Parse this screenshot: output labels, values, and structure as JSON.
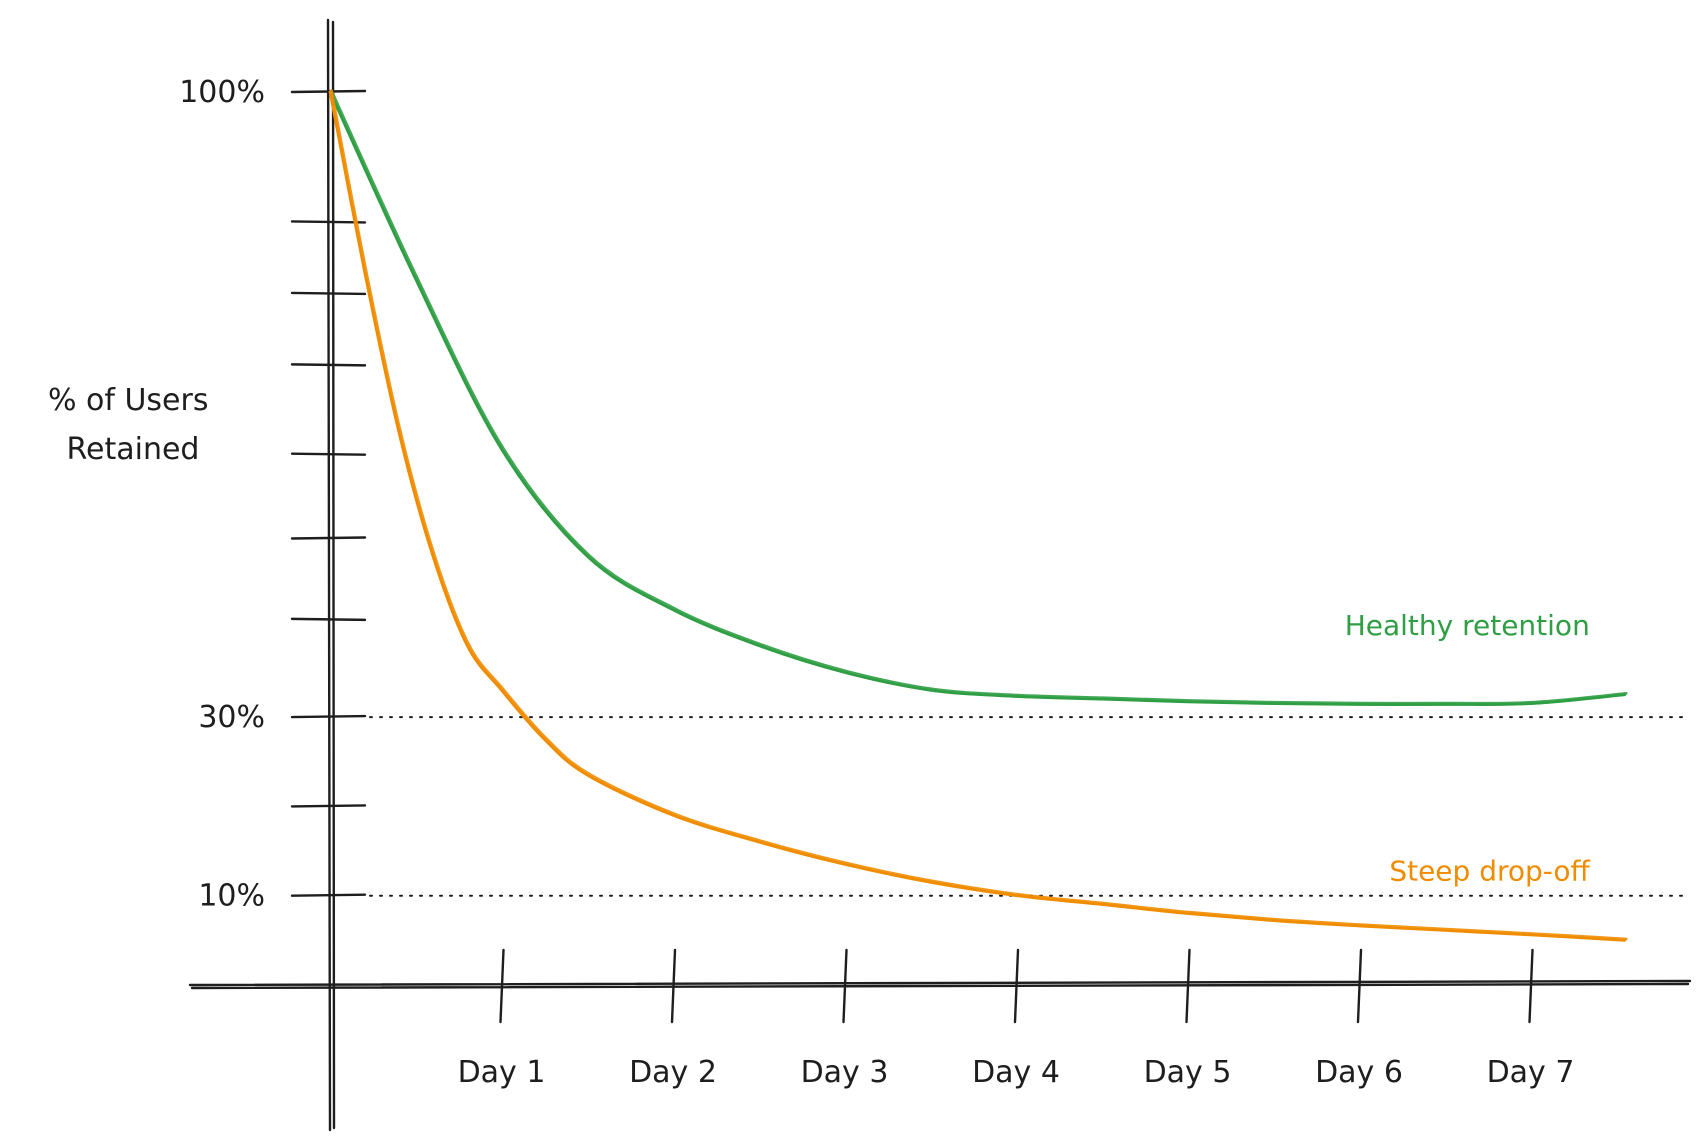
{
  "chart_data": {
    "type": "line",
    "title": "",
    "xlabel": "",
    "ylabel": "% of Users Retained",
    "ylabel_lines": [
      "% of Users",
      "Retained"
    ],
    "x_range": [
      0,
      7.65
    ],
    "ylim": [
      0,
      100
    ],
    "y_tick_values": [
      100,
      85.5,
      77.5,
      69.5,
      59.5,
      50,
      41,
      30,
      20,
      10
    ],
    "y_tick_labels": [
      {
        "value": 100,
        "label": "100%"
      },
      {
        "value": 30,
        "label": "30%"
      },
      {
        "value": 10,
        "label": "10%"
      }
    ],
    "reference_lines": [
      30,
      10
    ],
    "x_ticks": [
      {
        "value": 1,
        "label": "Day 1"
      },
      {
        "value": 2,
        "label": "Day 2"
      },
      {
        "value": 3,
        "label": "Day 3"
      },
      {
        "value": 4,
        "label": "Day 4"
      },
      {
        "value": 5,
        "label": "Day 5"
      },
      {
        "value": 6,
        "label": "Day 6"
      },
      {
        "value": 7,
        "label": "Day 7"
      }
    ],
    "grid": false,
    "legend": "inline labels at right end of each series",
    "series": [
      {
        "name": "Healthy retention",
        "color": "#2f9e44",
        "x": [
          0,
          0.5,
          1,
          1.5,
          2,
          2.5,
          3,
          3.5,
          4,
          4.5,
          5,
          5.5,
          6,
          6.5,
          7,
          7.55
        ],
        "values": [
          100,
          79,
          60,
          48,
          42,
          38,
          35,
          33,
          32.3,
          32,
          31.7,
          31.5,
          31.4,
          31.4,
          31.5,
          32.5
        ]
      },
      {
        "name": "Steep drop-off",
        "color": "#f08c00",
        "x": [
          0,
          0.2,
          0.4,
          0.6,
          0.8,
          1,
          1.25,
          1.5,
          2,
          2.5,
          3,
          3.5,
          4,
          4.5,
          5,
          5.5,
          6,
          6.5,
          7,
          7.55
        ],
        "values": [
          100,
          80,
          62,
          48,
          38,
          33,
          27.5,
          23.5,
          19,
          16,
          13.5,
          11.5,
          10,
          9,
          8,
          7.2,
          6.6,
          6.1,
          5.6,
          5
        ]
      }
    ]
  }
}
